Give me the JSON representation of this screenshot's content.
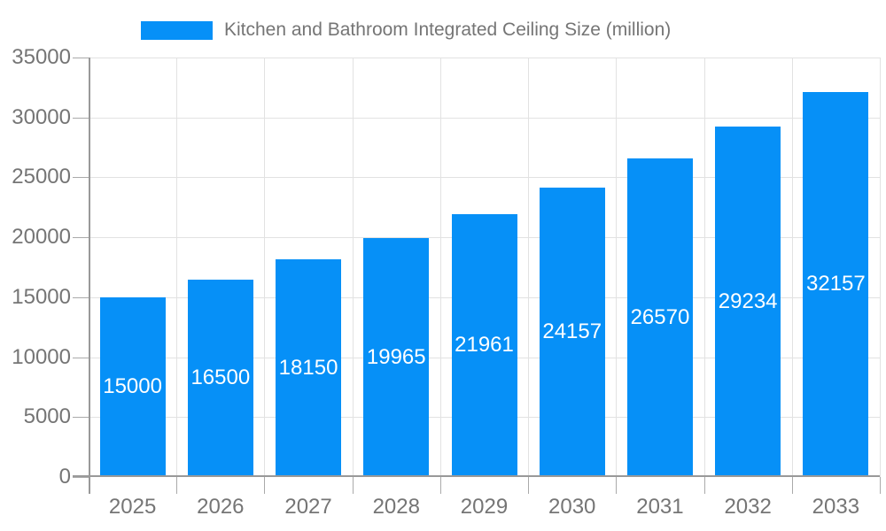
{
  "legend": {
    "label": "Kitchen and Bathroom Integrated Ceiling Size (million)"
  },
  "colors": {
    "bar": "#0690f7",
    "grid": "#e2e2e2",
    "axis": "#999999",
    "tick": "#aaaaaa",
    "muted_text": "#757575",
    "bar_label_text": "#ffffff"
  },
  "chart_data": {
    "type": "bar",
    "title": "Kitchen and Bathroom Integrated Ceiling Size (million)",
    "categories": [
      "2025",
      "2026",
      "2027",
      "2028",
      "2029",
      "2030",
      "2031",
      "2032",
      "2033"
    ],
    "values": [
      15000,
      16500,
      18150,
      19965,
      21961,
      24157,
      26570,
      29234,
      32157
    ],
    "series_name": "Kitchen and Bathroom Integrated Ceiling Size (million)",
    "xlabel": "",
    "ylabel": "",
    "ylim": [
      0,
      35000
    ],
    "ytick_step": 5000,
    "yticks": [
      0,
      5000,
      10000,
      15000,
      20000,
      25000,
      30000,
      35000
    ],
    "grid": true,
    "legend_position": "top",
    "bar_value_labels": true
  }
}
